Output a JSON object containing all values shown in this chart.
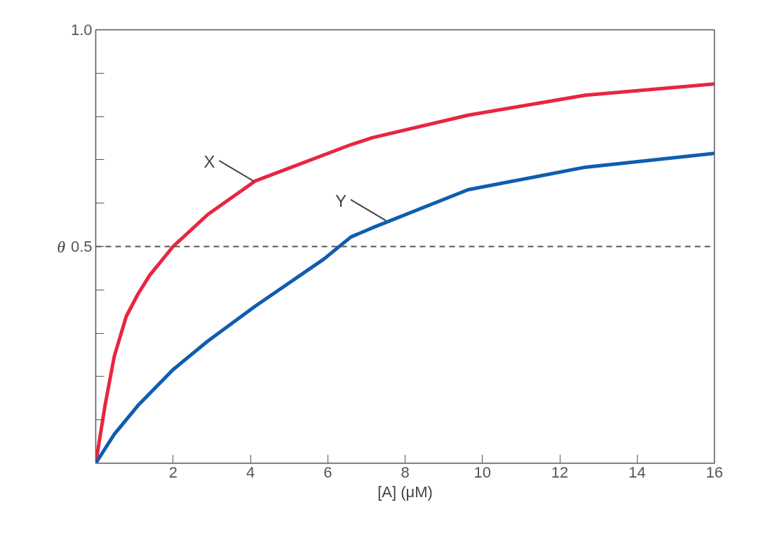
{
  "chart_data": {
    "type": "line",
    "xlabel": "[A] (μM)",
    "ylabel": "θ",
    "series": [
      {
        "color": "#e8263f",
        "x": [
          0,
          0.24,
          0.48,
          0.79,
          1.09,
          1.39,
          2,
          2.9,
          4.12,
          6.6,
          7.15,
          9.63,
          12.66,
          16
        ],
        "values": [
          0,
          0.133,
          0.247,
          0.339,
          0.39,
          0.433,
          0.5,
          0.574,
          0.651,
          0.735,
          0.751,
          0.803,
          0.849,
          0.875
        ]
      },
      {
        "color": "#0f5db0",
        "x": [
          0,
          0.48,
          1.09,
          2,
          2.9,
          4.12,
          5.9,
          6.6,
          7.15,
          9.63,
          12.66,
          16
        ],
        "values": [
          0,
          0.067,
          0.133,
          0.216,
          0.282,
          0.362,
          0.471,
          0.522,
          0.543,
          0.631,
          0.683,
          0.715
        ]
      }
    ],
    "annotations": [
      {
        "text": "X",
        "x": 4.1,
        "y": 0.65
      },
      {
        "text": "Y",
        "x": 7.5,
        "y": 0.56
      }
    ],
    "ref_lines": [
      {
        "axis": "y",
        "value": 0.5,
        "color": "#555555",
        "line_style": "dashed"
      }
    ],
    "xlim": [
      0,
      16
    ],
    "ylim": [
      0,
      1
    ],
    "xticks": [
      2,
      4,
      6,
      8,
      10,
      12,
      14,
      16
    ],
    "yticks": [
      {
        "value": 0.1,
        "label": null
      },
      {
        "value": 0.2,
        "label": null
      },
      {
        "value": 0.3,
        "label": null
      },
      {
        "value": 0.4,
        "label": null
      },
      {
        "value": 0.5,
        "label": "0.5"
      },
      {
        "value": 0.6,
        "label": null
      },
      {
        "value": 0.7,
        "label": null
      },
      {
        "value": 0.8,
        "label": null
      },
      {
        "value": 0.9,
        "label": null
      },
      {
        "value": 1,
        "label": "1.0"
      }
    ],
    "grid": false,
    "marker": "none",
    "line_style": "solid"
  }
}
